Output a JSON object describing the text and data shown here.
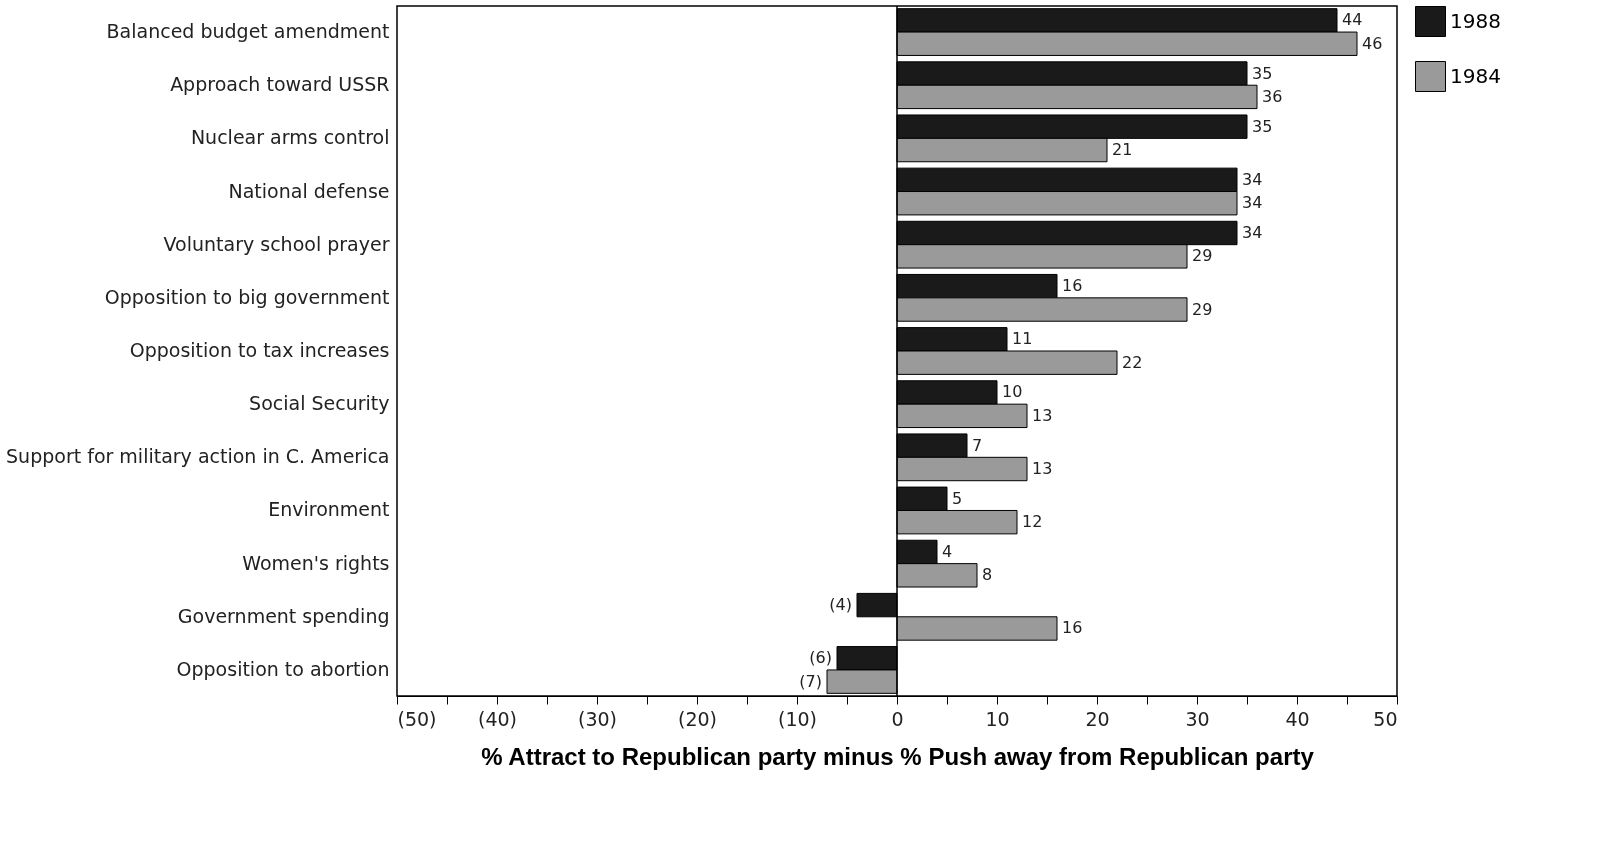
{
  "chart_data": {
    "type": "bar",
    "orientation": "horizontal",
    "xlabel": "% Attract to Republican party minus % Push away from Republican party",
    "categories": [
      "Balanced budget amendment",
      "Approach toward USSR",
      "Nuclear arms control",
      "National defense",
      "Voluntary school prayer",
      "Opposition to big government",
      "Opposition to tax increases",
      "Social Security",
      "Support for military action in C. America",
      "Environment",
      "Women's rights",
      "Government spending",
      "Opposition to abortion"
    ],
    "series": [
      {
        "name": "1988",
        "color": "#1a1a1a",
        "values": [
          44,
          35,
          35,
          34,
          34,
          16,
          11,
          10,
          7,
          5,
          4,
          -4,
          -6
        ],
        "value_labels": [
          "44",
          "35",
          "35",
          "34",
          "34",
          "16",
          "11",
          "10",
          "7",
          "5",
          "4",
          "(4)",
          "(6)"
        ]
      },
      {
        "name": "1984",
        "color": "#9a9a9a",
        "values": [
          46,
          36,
          21,
          34,
          29,
          29,
          22,
          13,
          13,
          12,
          8,
          16,
          -7
        ],
        "value_labels": [
          "46",
          "36",
          "21",
          "34",
          "29",
          "29",
          "22",
          "13",
          "13",
          "12",
          "8",
          "16",
          "(7)"
        ]
      }
    ],
    "xlim": [
      -50,
      50
    ],
    "xticks": [
      {
        "value": -50,
        "label": "(50)"
      },
      {
        "value": -45,
        "label": null
      },
      {
        "value": -40,
        "label": "(40)"
      },
      {
        "value": -35,
        "label": null
      },
      {
        "value": -30,
        "label": "(30)"
      },
      {
        "value": -25,
        "label": null
      },
      {
        "value": -20,
        "label": "(20)"
      },
      {
        "value": -15,
        "label": null
      },
      {
        "value": -10,
        "label": "(10)"
      },
      {
        "value": -5,
        "label": null
      },
      0,
      {
        "value": 5,
        "label": null
      },
      10,
      {
        "value": 15,
        "label": null
      },
      20,
      {
        "value": 25,
        "label": null
      },
      30,
      {
        "value": 35,
        "label": null
      },
      40,
      {
        "value": 45,
        "label": null
      },
      50
    ],
    "legend": "top right"
  }
}
